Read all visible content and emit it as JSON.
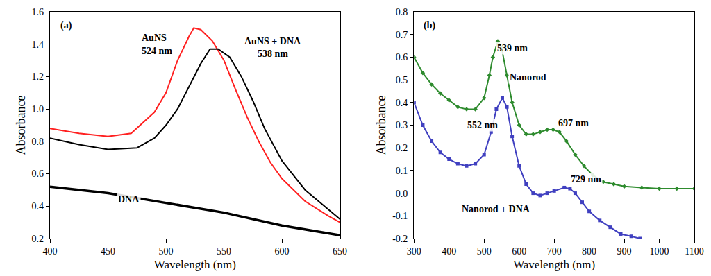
{
  "chart_data": [
    {
      "type": "line",
      "panel": "(a)",
      "x_label": "Wavelength (nm)",
      "y_label": "Absorbance",
      "xlim": [
        400,
        650
      ],
      "xticks": [
        400,
        450,
        500,
        550,
        600,
        650
      ],
      "ylim": [
        0.2,
        1.6
      ],
      "yticks": [
        0.2,
        0.4,
        0.6,
        0.8,
        {
          "value": 1,
          "label": "1.0"
        },
        1.2,
        1.4,
        1.6
      ],
      "grid": false,
      "series": [
        {
          "name": "AuNS",
          "color": "#ff2020",
          "line_style": "solid",
          "x": [
            400,
            425,
            450,
            470,
            490,
            500,
            510,
            520,
            524,
            530,
            540,
            550,
            560,
            570,
            580,
            590,
            600,
            620,
            640,
            650
          ],
          "values": [
            0.88,
            0.85,
            0.83,
            0.85,
            0.98,
            1.1,
            1.3,
            1.45,
            1.5,
            1.49,
            1.42,
            1.3,
            1.12,
            0.95,
            0.8,
            0.67,
            0.57,
            0.43,
            0.34,
            0.3
          ]
        },
        {
          "name": "AuNS + DNA",
          "color": "#000000",
          "line_style": "solid",
          "x": [
            400,
            425,
            450,
            475,
            490,
            500,
            510,
            520,
            530,
            538,
            545,
            555,
            565,
            575,
            585,
            600,
            620,
            640,
            650
          ],
          "values": [
            0.82,
            0.78,
            0.75,
            0.76,
            0.82,
            0.9,
            1.0,
            1.14,
            1.28,
            1.37,
            1.37,
            1.32,
            1.2,
            1.05,
            0.88,
            0.68,
            0.5,
            0.38,
            0.32
          ]
        },
        {
          "name": "DNA",
          "color": "#000000",
          "line_style": "thick",
          "x": [
            400,
            450,
            500,
            550,
            600,
            650
          ],
          "values": [
            0.52,
            0.48,
            0.42,
            0.36,
            0.28,
            0.22
          ]
        }
      ],
      "annotations": [
        {
          "text": "AuNS",
          "x": 490,
          "y": 1.44
        },
        {
          "text": "524 nm",
          "x": 492,
          "y": 1.36
        },
        {
          "text": "AuNS + DNA",
          "x": 592,
          "y": 1.42
        },
        {
          "text": "538 nm",
          "x": 592,
          "y": 1.34
        },
        {
          "text": "DNA",
          "x": 468,
          "y": 0.44
        }
      ]
    },
    {
      "type": "line",
      "panel": "(b)",
      "x_label": "Wavelength (nm)",
      "y_label": "Absorbance",
      "xlim": [
        300,
        1100
      ],
      "xticks": [
        300,
        400,
        500,
        600,
        700,
        800,
        900,
        1000,
        1100
      ],
      "ylim": [
        -0.2,
        0.8
      ],
      "yticks": [
        -0.2,
        -0.1,
        {
          "value": 0,
          "label": "0.0"
        },
        0.1,
        0.2,
        0.3,
        0.4,
        0.5,
        0.6,
        0.7,
        0.8
      ],
      "grid": false,
      "series": [
        {
          "name": "Nanorod",
          "color": "#2e8b2e",
          "line_style": "solid",
          "marker": "diamond",
          "x": [
            300,
            325,
            350,
            375,
            400,
            425,
            450,
            475,
            500,
            515,
            525,
            539,
            550,
            565,
            580,
            600,
            620,
            640,
            660,
            680,
            697,
            715,
            735,
            760,
            785,
            810,
            840,
            870,
            900,
            950,
            1000,
            1050,
            1100
          ],
          "values": [
            0.6,
            0.53,
            0.48,
            0.44,
            0.41,
            0.38,
            0.37,
            0.37,
            0.42,
            0.52,
            0.6,
            0.67,
            0.64,
            0.52,
            0.4,
            0.3,
            0.26,
            0.26,
            0.27,
            0.28,
            0.28,
            0.27,
            0.23,
            0.17,
            0.12,
            0.08,
            0.05,
            0.04,
            0.03,
            0.025,
            0.02,
            0.02,
            0.02
          ]
        },
        {
          "name": "Nanorod + DNA",
          "color": "#4040c0",
          "line_style": "solid",
          "marker": "square",
          "x": [
            300,
            325,
            350,
            375,
            400,
            425,
            450,
            475,
            500,
            520,
            535,
            552,
            565,
            580,
            600,
            620,
            640,
            660,
            680,
            700,
            729,
            745,
            760,
            780,
            800,
            830,
            860,
            890,
            920,
            945
          ],
          "values": [
            0.4,
            0.3,
            0.23,
            0.18,
            0.15,
            0.13,
            0.12,
            0.13,
            0.17,
            0.27,
            0.37,
            0.42,
            0.38,
            0.25,
            0.12,
            0.04,
            0.0,
            -0.01,
            0.0,
            0.01,
            0.025,
            0.02,
            0.0,
            -0.04,
            -0.08,
            -0.12,
            -0.15,
            -0.18,
            -0.19,
            -0.2
          ]
        }
      ],
      "annotations": [
        {
          "text": "539 nm",
          "x": 580,
          "y": 0.64
        },
        {
          "text": "Nanorod",
          "x": 625,
          "y": 0.51
        },
        {
          "text": "552 nm",
          "x": 495,
          "y": 0.3
        },
        {
          "text": "697 nm",
          "x": 755,
          "y": 0.31
        },
        {
          "text": "729 nm",
          "x": 790,
          "y": 0.06
        },
        {
          "text": "Nanorod + DNA",
          "x": 535,
          "y": -0.07
        }
      ]
    }
  ]
}
